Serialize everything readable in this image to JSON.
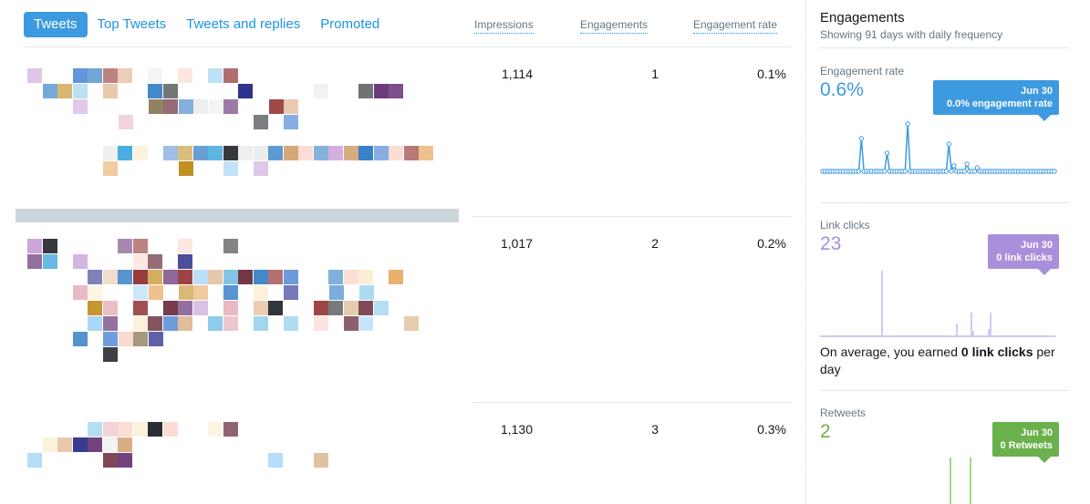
{
  "tabs": [
    {
      "label": "Tweets",
      "active": true
    },
    {
      "label": "Top Tweets",
      "active": false
    },
    {
      "label": "Tweets and replies",
      "active": false
    },
    {
      "label": "Promoted",
      "active": false
    }
  ],
  "columns": {
    "impressions": "Impressions",
    "engagements": "Engagements",
    "engagement_rate": "Engagement rate"
  },
  "rows": [
    {
      "impressions": "1,114",
      "engagements": "1",
      "rate": "0.1%"
    },
    {
      "impressions": "1,017",
      "engagements": "2",
      "rate": "0.2%"
    },
    {
      "impressions": "1,130",
      "engagements": "3",
      "rate": "0.3%"
    }
  ],
  "panel": {
    "title": "Engagements",
    "subtitle": "Showing 91 days with daily frequency",
    "engagement_rate": {
      "label": "Engagement rate",
      "value": "0.6%",
      "tip_date": "Jun 30",
      "tip_text": "0.0% engagement rate",
      "color": "#3d9ae0"
    },
    "link_clicks": {
      "label": "Link clicks",
      "value": "23",
      "tip_date": "Jun 30",
      "tip_text": "0 link clicks",
      "color": "#a98fdb",
      "avg_prefix": "On average, you earned ",
      "avg_value": "0 link clicks",
      "avg_suffix": " per day"
    },
    "retweets": {
      "label": "Retweets",
      "value": "2",
      "tip_date": "Jun 30",
      "tip_text": "0 Retweets",
      "color": "#6ab04c"
    }
  },
  "colors": {
    "accent": "#1b95e0",
    "tab_active": "#3d9ae0",
    "blur_palette": [
      "#6b2d3e",
      "#5a8fd8",
      "#2a2d32",
      "#a8d5f7",
      "#e8c6a8",
      "#fbeed1",
      "#bf8a1a",
      "#9ed6ee",
      "#2d7bc4",
      "#ededed",
      "#e6a55a",
      "#c9a0d8",
      "#2a2f8a",
      "#8e2a2a",
      "#5b4413",
      "#d4a373",
      "#e8b9c1",
      "#6c3a7a",
      "#33a0db",
      "#fbd6cd"
    ]
  }
}
